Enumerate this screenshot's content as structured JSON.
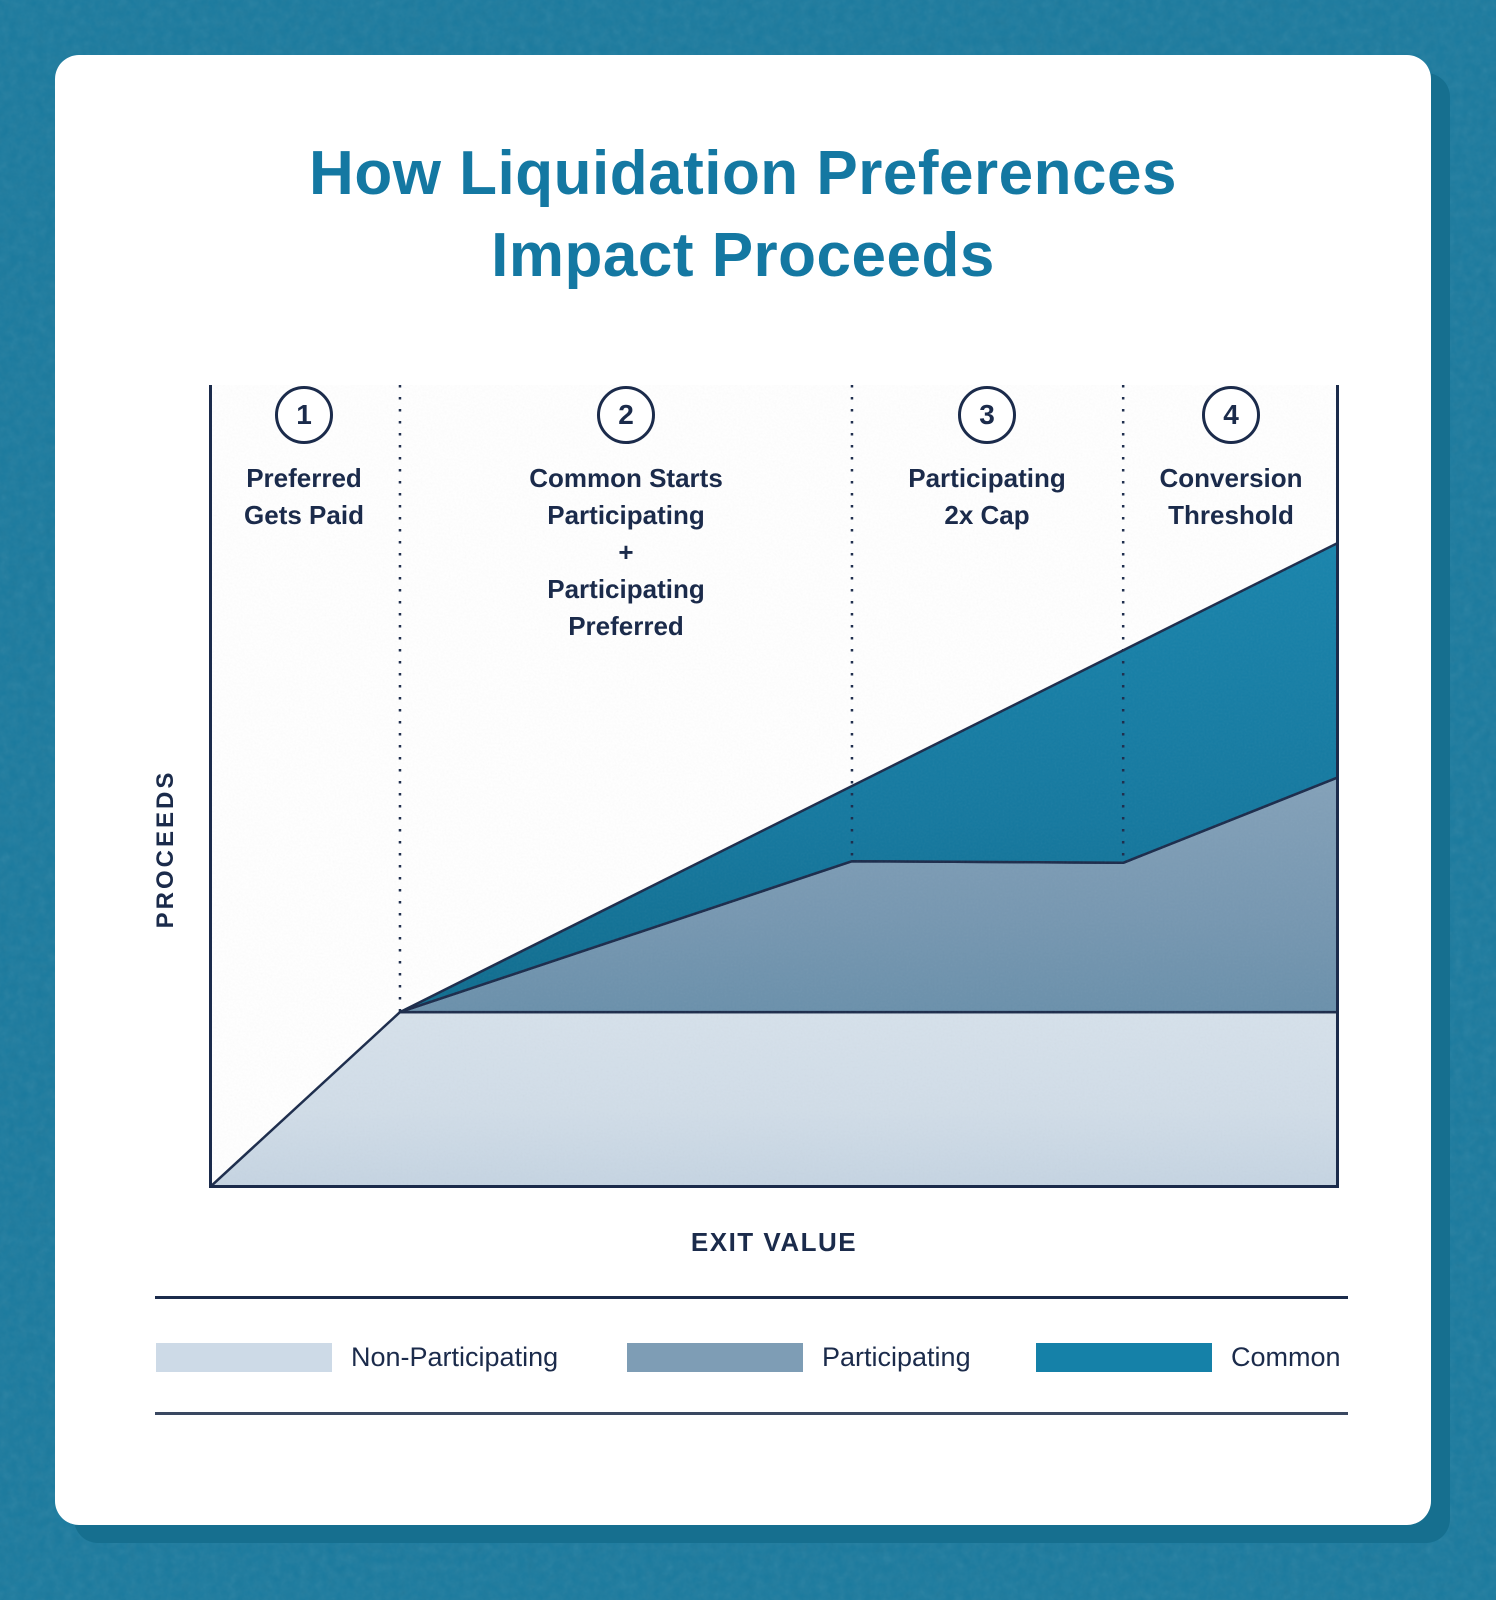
{
  "title": {
    "line1": "How Liquidation Preferences",
    "line2": "Impact Proceeds"
  },
  "axes": {
    "y_label": "PROCEEDS",
    "x_label": "EXIT VALUE"
  },
  "stages": [
    {
      "number": "1",
      "lines": [
        "Preferred",
        "Gets Paid"
      ]
    },
    {
      "number": "2",
      "lines": [
        "Common Starts",
        "Participating",
        "+",
        "Participating",
        "Preferred"
      ]
    },
    {
      "number": "3",
      "lines": [
        "Participating",
        "2x Cap"
      ]
    },
    {
      "number": "4",
      "lines": [
        "Conversion",
        "Threshold"
      ]
    }
  ],
  "legend": [
    {
      "label": "Non-Participating",
      "color": "#CDDAE7"
    },
    {
      "label": "Participating",
      "color": "#7E9DB5"
    },
    {
      "label": "Common",
      "color": "#1581A8"
    }
  ],
  "colors": {
    "background": "#1A7A9E",
    "card": "#FFFFFF",
    "card_shadow": "#166F8F",
    "title": "#1478A2",
    "text_navy": "#1B2B4B",
    "line": "#1B2B4B"
  },
  "chart_data": {
    "type": "area",
    "title": "How Liquidation Preferences Impact Proceeds",
    "xlabel": "EXIT VALUE",
    "ylabel": "PROCEEDS",
    "axis_numeric_ticks": "none shown (conceptual axes)",
    "xlim_pct": [
      0,
      100
    ],
    "ylim_pct": [
      0,
      100
    ],
    "grid": false,
    "legend_position": "bottom",
    "series": [
      {
        "name": "Non-Participating",
        "color": "#CDDAE7",
        "points_pct": [
          [
            0,
            0
          ],
          [
            16.9,
            21.9
          ],
          [
            100,
            21.9
          ]
        ]
      },
      {
        "name": "Participating",
        "color": "#7E9DB5",
        "points_pct": [
          [
            16.9,
            21.9
          ],
          [
            56.9,
            40.7
          ],
          [
            80.9,
            40.5
          ],
          [
            100,
            51.2
          ]
        ]
      },
      {
        "name": "Common",
        "color": "#1581A8",
        "points_pct": [
          [
            16.9,
            21.9
          ],
          [
            100,
            80.4
          ]
        ]
      }
    ],
    "dividers": [
      {
        "x_pct": 16.9,
        "end_y_pct": 21.9,
        "stage_after": "Common Starts Participating + Participating Preferred"
      },
      {
        "x_pct": 56.9,
        "end_y_pct": 40.7,
        "stage_after": "Participating 2x Cap"
      },
      {
        "x_pct": 80.9,
        "end_y_pct": 40.5,
        "stage_after": "Conversion Threshold"
      }
    ]
  }
}
